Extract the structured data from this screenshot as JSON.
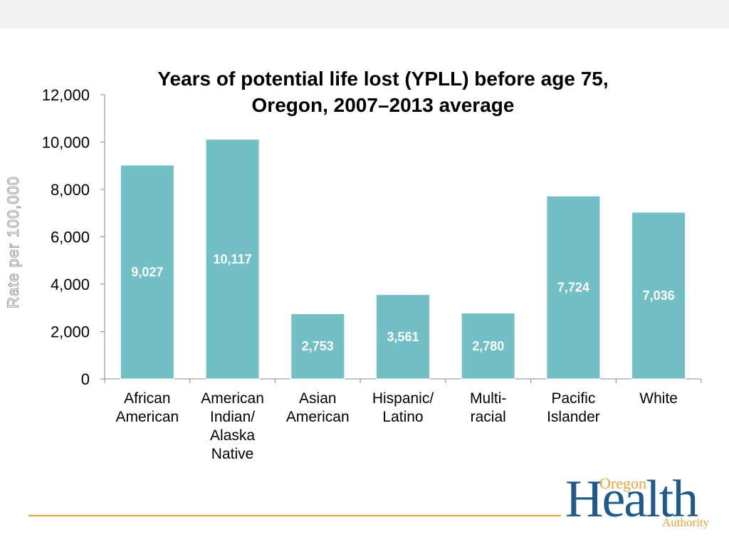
{
  "chart_data": {
    "type": "bar",
    "title": [
      "Years of potential life lost (YPLL) before age 75,",
      "Oregon, 2007–2013 average"
    ],
    "ylabel": "Rate per 100,000",
    "xlabel": "",
    "ylim": [
      0,
      12000
    ],
    "yticks": [
      "0",
      "2,000",
      "4,000",
      "6,000",
      "8,000",
      "10,000",
      "12,000"
    ],
    "categories": [
      [
        "African",
        "American"
      ],
      [
        "American",
        "Indian/",
        "Alaska",
        "Native"
      ],
      [
        "Asian",
        "American"
      ],
      [
        "Hispanic/",
        "Latino"
      ],
      [
        "Multi-",
        "racial"
      ],
      [
        "Pacific",
        "Islander"
      ],
      [
        "White"
      ]
    ],
    "values": [
      9027,
      10117,
      2753,
      3561,
      2780,
      7724,
      7036
    ],
    "data_labels": [
      "9,027",
      "10,117",
      "2,753",
      "3,561",
      "2,780",
      "7,724",
      "7,036"
    ],
    "bar_color": "#72bfc5",
    "grid": false,
    "legend": "none"
  },
  "logo": {
    "oregon": "Oregon",
    "health": "Health",
    "authority": "Authority",
    "colors": {
      "primary": "#1f5a8a",
      "accent": "#e8a33d"
    }
  },
  "colors": {
    "footer_line": "#e4a43c",
    "top_band": "#f2f3f3"
  }
}
